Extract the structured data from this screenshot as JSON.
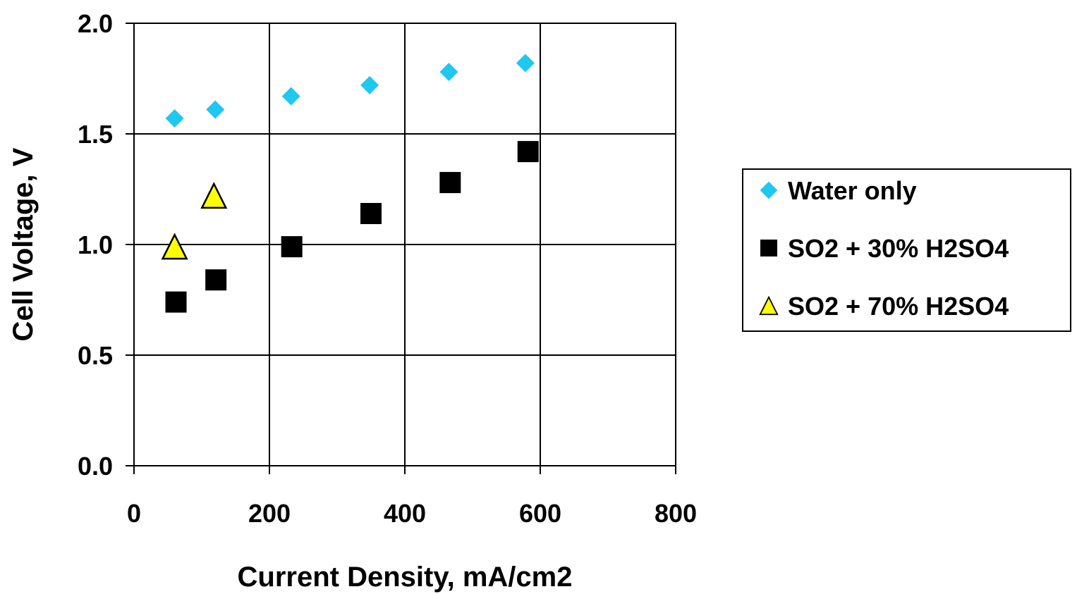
{
  "chart_data": {
    "type": "scatter",
    "xlabel": "Current Density, mA/cm2",
    "ylabel": "Cell Voltage, V",
    "xlim": [
      0,
      800
    ],
    "ylim": [
      0,
      2.0
    ],
    "x_ticks": [
      0,
      200,
      400,
      600,
      800
    ],
    "y_ticks": [
      0.0,
      0.5,
      1.0,
      1.5,
      2.0
    ],
    "x_tick_labels": [
      "0",
      "200",
      "400",
      "600",
      "800"
    ],
    "y_tick_labels": [
      "0.0",
      "0.5",
      "1.0",
      "1.5",
      "2.0"
    ],
    "grid": true,
    "legend_position": "right",
    "series": [
      {
        "name": "Water only",
        "marker": "diamond",
        "color": "#1EC8F0",
        "points": [
          [
            60,
            1.57
          ],
          [
            120,
            1.61
          ],
          [
            232,
            1.67
          ],
          [
            348,
            1.72
          ],
          [
            465,
            1.78
          ],
          [
            578,
            1.82
          ]
        ]
      },
      {
        "name": "SO2 + 30% H2SO4",
        "marker": "square",
        "color": "#000000",
        "points": [
          [
            62,
            0.74
          ],
          [
            121,
            0.84
          ],
          [
            233,
            0.99
          ],
          [
            350,
            1.14
          ],
          [
            467,
            1.28
          ],
          [
            582,
            1.42
          ]
        ]
      },
      {
        "name": "SO2 + 70% H2SO4",
        "marker": "triangle",
        "color": "#FFFF00",
        "points": [
          [
            60,
            0.99
          ],
          [
            118,
            1.22
          ]
        ]
      }
    ]
  }
}
